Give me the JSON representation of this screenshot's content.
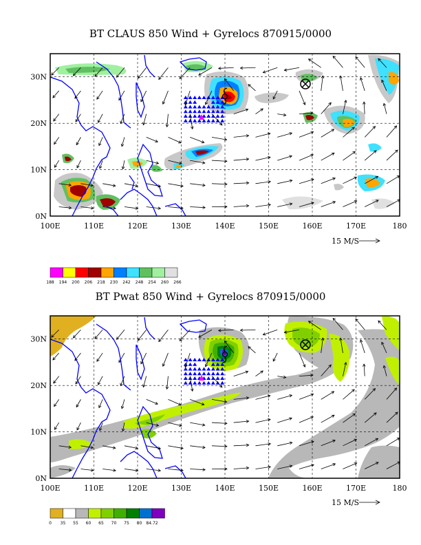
{
  "panels": [
    {
      "title": "BT CLAUS 850 Wind + Gyrelocs 870915/0000",
      "lat_labels": [
        "0N",
        "10N",
        "20N",
        "30N"
      ],
      "lon_labels": [
        "100E",
        "110E",
        "120E",
        "130E",
        "140E",
        "150E",
        "160E",
        "170E",
        "180"
      ],
      "vector_scale_label": "15 M/S",
      "colorbar": {
        "colors": [
          "#ff00ff",
          "#ffff00",
          "#ff0000",
          "#a00000",
          "#ffa500",
          "#0080ff",
          "#40e0ff",
          "#60c060",
          "#a0f0a0",
          "#e0e0e0"
        ],
        "labels": [
          "188",
          "194",
          "200",
          "206",
          "218",
          "230",
          "242",
          "248",
          "254",
          "260",
          "266"
        ]
      },
      "gyre_markers": [
        {
          "type": "circled-x",
          "lon": 159,
          "lat": 28
        },
        {
          "type": "typhoon-symbol",
          "lon": 139.5,
          "lat": 26
        }
      ]
    },
    {
      "title": "BT Pwat 850 Wind + Gyrelocs 870915/0000",
      "lat_labels": [
        "0N",
        "10N",
        "20N",
        "30N"
      ],
      "lon_labels": [
        "100E",
        "110E",
        "120E",
        "130E",
        "140E",
        "150E",
        "160E",
        "170E",
        "180"
      ],
      "vector_scale_label": "15 M/S",
      "colorbar": {
        "colors": [
          "#e0b020",
          "#ffffff",
          "#b8b8b8",
          "#c0f000",
          "#80d000",
          "#40b000",
          "#008000",
          "#0070d0",
          "#8000c0"
        ],
        "labels": [
          "0",
          "35",
          "55",
          "60",
          "65",
          "70",
          "75",
          "80",
          "84.72"
        ]
      },
      "gyre_markers": [
        {
          "type": "circled-x",
          "lon": 159,
          "lat": 28
        },
        {
          "type": "typhoon-symbol",
          "lon": 139.5,
          "lat": 26
        }
      ]
    }
  ],
  "colors": {
    "coast": "#0000ff",
    "grid": "#000000",
    "triangles": "#0000ff",
    "pink_marker": "#ff00ff"
  }
}
